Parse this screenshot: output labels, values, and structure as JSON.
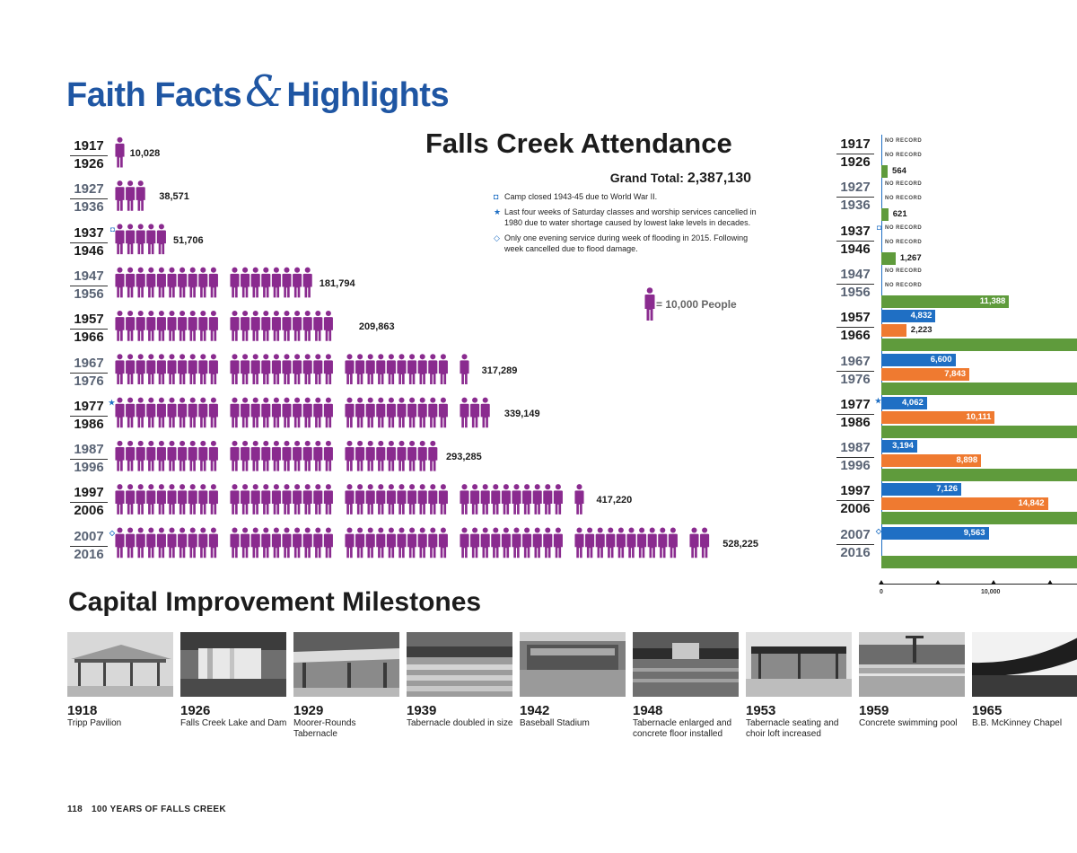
{
  "header": {
    "title_part1": "Faith Facts",
    "title_amp": "&",
    "title_part2": "Highlights"
  },
  "attendance": {
    "title": "Falls Creek Attendance",
    "grand_total_label": "Grand Total:",
    "grand_total_value": "2,387,130",
    "notes": [
      {
        "marker": "◘",
        "text": "Camp closed 1943-45 due to World War II."
      },
      {
        "marker": "★",
        "text": "Last four weeks of Saturday classes and worship services cancelled in 1980 due to water shortage caused by lowest lake levels in decades."
      },
      {
        "marker": "◇",
        "text": "Only one evening service during week of flooding in 2015. Following week cancelled due to flood damage."
      }
    ],
    "legend": "= 10,000 People"
  },
  "chart_data": [
    {
      "type": "bar",
      "title": "Falls Creek Attendance",
      "unit_per_icon": 10000,
      "categories": [
        "1917–1926",
        "1927–1936",
        "1937–1946",
        "1947–1956",
        "1957–1966",
        "1967–1976",
        "1977–1986",
        "1987–1996",
        "1997–2006",
        "2007–2016"
      ],
      "rows": [
        {
          "start": "1917",
          "end": "1926",
          "marker": "",
          "value": 10028,
          "label": "10,028"
        },
        {
          "start": "1927",
          "end": "1936",
          "marker": "",
          "value": 38571,
          "label": "38,571"
        },
        {
          "start": "1937",
          "end": "1946",
          "marker": "◘",
          "value": 51706,
          "label": "51,706"
        },
        {
          "start": "1947",
          "end": "1956",
          "marker": "",
          "value": 181794,
          "label": "181,794"
        },
        {
          "start": "1957",
          "end": "1966",
          "marker": "",
          "value": 209863,
          "label": "209,863"
        },
        {
          "start": "1967",
          "end": "1976",
          "marker": "",
          "value": 317289,
          "label": "317,289"
        },
        {
          "start": "1977",
          "end": "1986",
          "marker": "★",
          "value": 339149,
          "label": "339,149"
        },
        {
          "start": "1987",
          "end": "1996",
          "marker": "",
          "value": 293285,
          "label": "293,285"
        },
        {
          "start": "1997",
          "end": "2006",
          "marker": "",
          "value": 417220,
          "label": "417,220"
        },
        {
          "start": "2007",
          "end": "2016",
          "marker": "◇",
          "value": 528225,
          "label": "528,225"
        }
      ],
      "series": [
        {
          "values": [
            10028,
            38571,
            51706,
            181794,
            209863,
            317289,
            339149,
            293285,
            417220,
            528225
          ]
        }
      ],
      "color": "#8a2b8f"
    },
    {
      "type": "bar",
      "orientation": "horizontal",
      "categories": [
        "1917–1926",
        "1927–1936",
        "1937–1946",
        "1947–1956",
        "1957–1966",
        "1967–1976",
        "1977–1986",
        "1987–1996",
        "1997–2006",
        "2007–2016"
      ],
      "no_record_label": "NO RECORD",
      "series": [
        {
          "color": "#1f6fc4",
          "values": [
            null,
            null,
            null,
            null,
            4832,
            6600,
            4062,
            3194,
            7126,
            9563
          ],
          "labels": [
            "",
            "",
            "",
            "",
            "4,832",
            "6,600",
            "4,062",
            "3,194",
            "7,126",
            "9,563"
          ]
        },
        {
          "color": "#ef7a30",
          "values": [
            null,
            null,
            null,
            null,
            2223,
            7843,
            10111,
            8898,
            14842,
            null
          ],
          "labels": [
            "",
            "",
            "",
            "",
            "2,223",
            "7,843",
            "10,111",
            "8,898",
            "14,842",
            ""
          ]
        },
        {
          "color": "#5f9b3c",
          "values": [
            564,
            621,
            1267,
            11388,
            null,
            null,
            null,
            null,
            null,
            null
          ],
          "labels": [
            "564",
            "621",
            "1,267",
            "11,388",
            "",
            "",
            "",
            "",
            "",
            ""
          ]
        }
      ],
      "x_ticks": [
        "0",
        "10,000"
      ],
      "xlim": [
        0,
        16000
      ]
    }
  ],
  "milestones": {
    "title": "Capital Improvement Milestones",
    "items": [
      {
        "year": "1918",
        "label": "Tripp Pavilion"
      },
      {
        "year": "1926",
        "label": "Falls Creek Lake and Dam"
      },
      {
        "year": "1929",
        "label": "Moorer-Rounds Tabernacle"
      },
      {
        "year": "1939",
        "label": "Tabernacle doubled in size"
      },
      {
        "year": "1942",
        "label": "Baseball Stadium"
      },
      {
        "year": "1948",
        "label": "Tabernacle enlarged and concrete floor installed"
      },
      {
        "year": "1953",
        "label": "Tabernacle seating and choir loft increased"
      },
      {
        "year": "1959",
        "label": "Concrete swimming pool"
      },
      {
        "year": "1965",
        "label": "B.B. McKinney Chapel"
      }
    ]
  },
  "footer": {
    "page_number": "118",
    "book_title": "100 YEARS OF FALLS CREEK"
  }
}
